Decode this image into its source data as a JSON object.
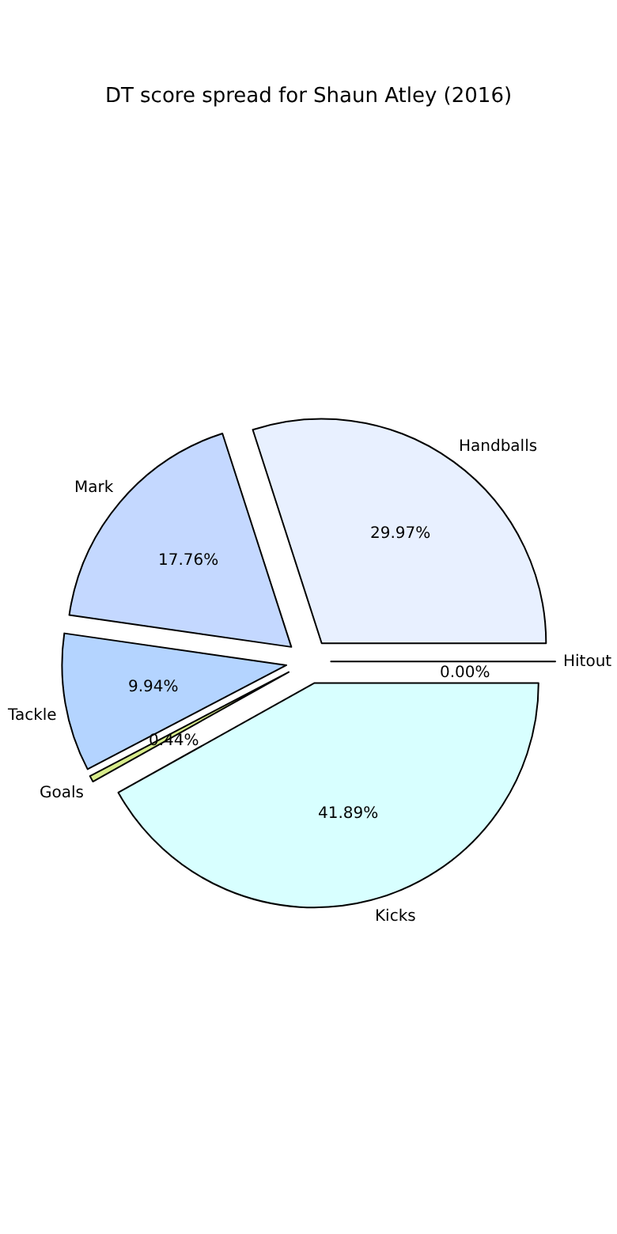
{
  "chart_data": {
    "type": "pie",
    "title": "DT score spread for Shaun Atley (2016)",
    "categories": [
      "Handballs",
      "Mark",
      "Tackle",
      "Goals",
      "Kicks",
      "Hitout"
    ],
    "values": [
      29.97,
      17.76,
      9.94,
      0.44,
      41.89,
      0.0
    ],
    "value_labels": [
      "29.97%",
      "17.76%",
      "9.94%",
      "0.44%",
      "41.89%",
      "0.00%"
    ],
    "colors": [
      "#e8f0ff",
      "#c4d8ff",
      "#b4d4ff",
      "#d8ec8c",
      "#d8ffff",
      "#ffffff"
    ],
    "legend": false
  }
}
